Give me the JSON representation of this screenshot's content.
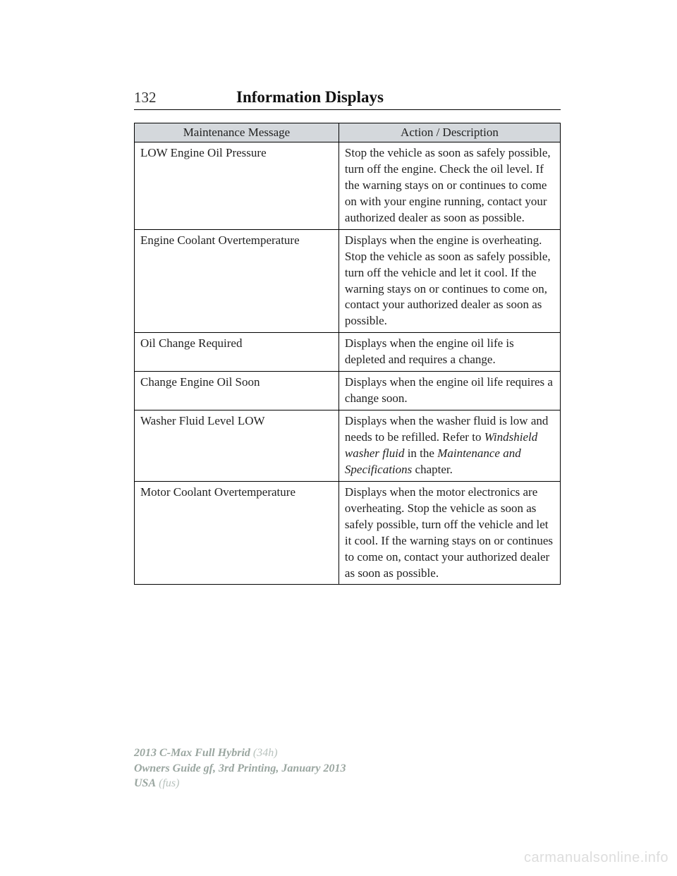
{
  "page": {
    "number": "132",
    "section_title": "Information Displays",
    "background_color": "#ffffff",
    "text_color": "#222222"
  },
  "table": {
    "type": "table",
    "header_bg": "#d4d8dc",
    "border_color": "#000000",
    "font_size_pt": 13,
    "columns": [
      "Maintenance Message",
      "Action / Description"
    ],
    "col_widths_pct": [
      48,
      52
    ],
    "rows": [
      {
        "message": "LOW Engine Oil Pressure",
        "description": "Stop the vehicle as soon as safely possible, turn off the engine. Check the oil level. If the warning stays on or continues to come on with your engine running, contact your authorized dealer as soon as possible."
      },
      {
        "message": "Engine Coolant Overtemperature",
        "description": "Displays when the engine is overheating. Stop the vehicle as soon as safely possible, turn off the vehicle and let it cool. If the warning stays on or continues to come on, contact your authorized dealer as soon as possible."
      },
      {
        "message": "Oil Change Required",
        "description": "Displays when the engine oil life is depleted and requires a change."
      },
      {
        "message": "Change Engine Oil Soon",
        "description": "Displays when the engine oil life requires a change soon."
      },
      {
        "message": "Washer Fluid Level LOW",
        "description_pre": "Displays when the washer fluid is low and needs to be refilled. Refer to ",
        "description_italic1": "Windshield washer fluid",
        "description_mid": " in the ",
        "description_italic2": "Maintenance and Specifications",
        "description_post": " chapter."
      },
      {
        "message": "Motor Coolant Overtemperature",
        "description": "Displays when the motor electronics are overheating. Stop the vehicle as soon as safely possible, turn off the vehicle and let it cool. If the warning stays on or continues to come on, contact your authorized dealer as soon as possible."
      }
    ]
  },
  "footer": {
    "line1_bold": "2013 C-Max Full Hybrid",
    "line1_light": " (34h)",
    "line2": "Owners Guide gf, 3rd Printing, January 2013",
    "line3_bold": "USA",
    "line3_light": " (fus)",
    "bold_color": "#9aa6a0",
    "light_color": "#b8c2bd"
  },
  "watermark": {
    "text": "carmanualsonline.info",
    "color": "#dddddd"
  }
}
